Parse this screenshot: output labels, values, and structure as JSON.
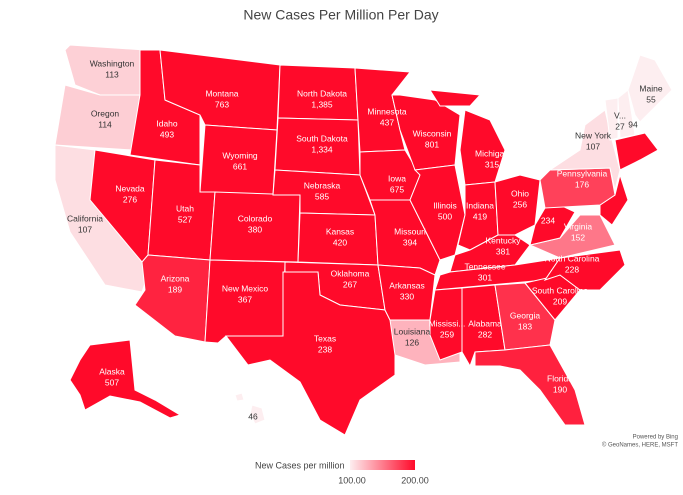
{
  "title": "New Cases Per Million Per Day",
  "regions": [
    {
      "name": "Washington",
      "value": 113
    },
    {
      "name": "Oregon",
      "value": 114
    },
    {
      "name": "California",
      "value": 107
    },
    {
      "name": "Nevada",
      "value": 276
    },
    {
      "name": "Idaho",
      "value": 493
    },
    {
      "name": "Montana",
      "value": 763
    },
    {
      "name": "Wyoming",
      "value": 661
    },
    {
      "name": "Utah",
      "value": 527
    },
    {
      "name": "Arizona",
      "value": 189
    },
    {
      "name": "Colorado",
      "value": 380
    },
    {
      "name": "New Mexico",
      "value": 367
    },
    {
      "name": "North Dakota",
      "value": 1385,
      "value_label": "1,385"
    },
    {
      "name": "South Dakota",
      "value": 1334,
      "value_label": "1,334"
    },
    {
      "name": "Nebraska",
      "value": 585
    },
    {
      "name": "Kansas",
      "value": 420
    },
    {
      "name": "Oklahoma",
      "value": 267
    },
    {
      "name": "Texas",
      "value": 238
    },
    {
      "name": "Minnesota",
      "value": 437
    },
    {
      "name": "Iowa",
      "value": 675
    },
    {
      "name": "Missouri",
      "value": 394
    },
    {
      "name": "Arkansas",
      "value": 330
    },
    {
      "name": "Louisiana",
      "value": 126
    },
    {
      "name": "Wisconsin",
      "value": 801
    },
    {
      "name": "Illinois",
      "value": 500
    },
    {
      "name": "Michigan",
      "value": 315
    },
    {
      "name": "Indiana",
      "value": 419
    },
    {
      "name": "Ohio",
      "value": 256
    },
    {
      "name": "Kentucky",
      "value": 381
    },
    {
      "name": "Tennessee",
      "value": 301
    },
    {
      "name": "Mississi...",
      "value": 259
    },
    {
      "name": "Alabama",
      "value": 282
    },
    {
      "name": "Georgia",
      "value": 183
    },
    {
      "name": "Florida",
      "value": 190
    },
    {
      "name": "South Carolina",
      "value": 209
    },
    {
      "name": "North Carolina",
      "value": 228
    },
    {
      "name": "Virginia",
      "value": 152
    },
    {
      "value": 234
    },
    {
      "name": "Pennsylvania",
      "value": 176
    },
    {
      "name": "New York",
      "value": 107
    },
    {
      "name": "V...",
      "value": 27
    },
    {
      "value": 94
    },
    {
      "name": "Maine",
      "value": 55
    },
    {
      "name": "Alaska",
      "value": 507
    },
    {
      "value": 46
    }
  ],
  "legend": {
    "title": "New Cases per million",
    "min": {
      "value": 100,
      "label": "100.00"
    },
    "max": {
      "value": 200,
      "label": "200.00"
    },
    "low_color": "#fdeef0",
    "high_color": "#ff0a2a"
  },
  "attribution": [
    "Powered by Bing",
    "© GeoNames, HERE, MSFT"
  ]
}
